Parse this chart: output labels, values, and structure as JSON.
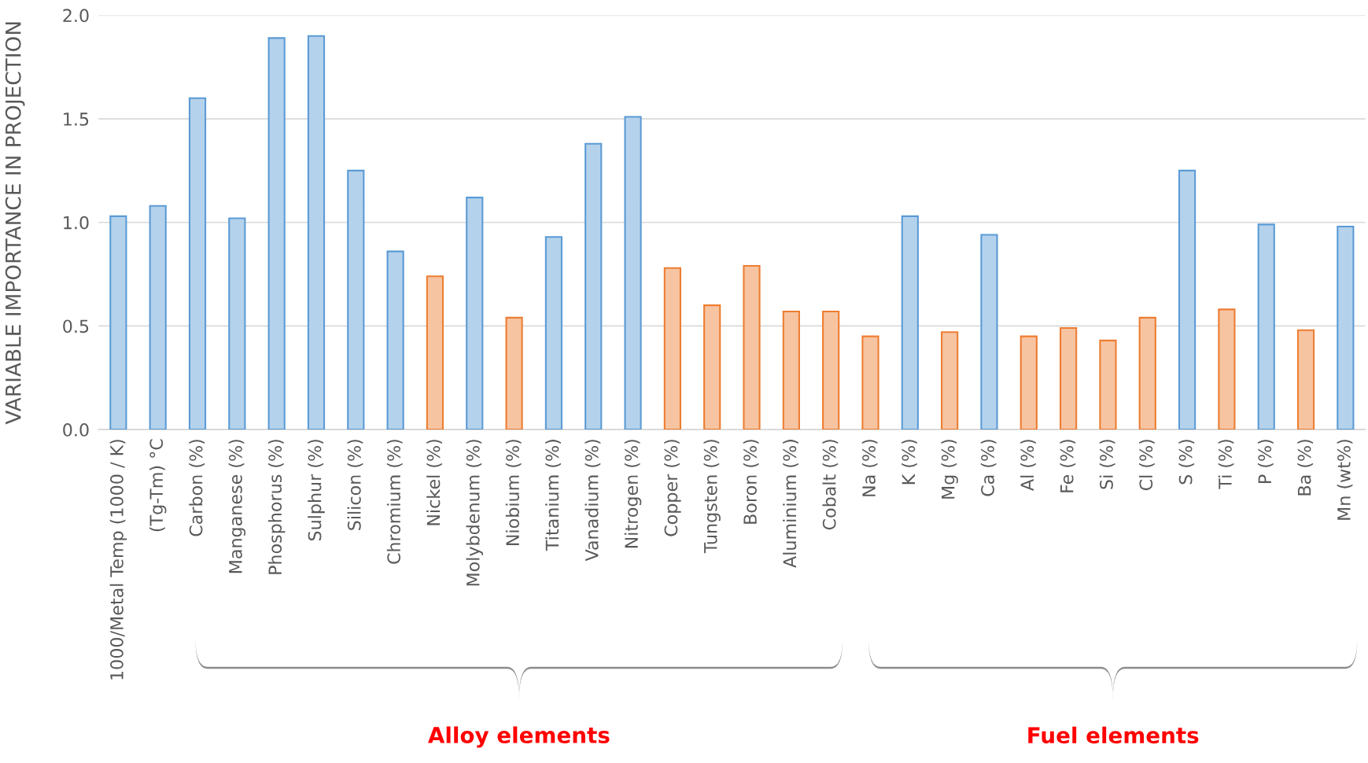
{
  "chart_data": {
    "type": "bar",
    "ylabel": "VARIABLE IMPORTANCE IN PROJECTION",
    "categories": [
      "1000/Metal Temp (1000 / K)",
      "(Tg-Tm) °C",
      "Carbon (%)",
      "Manganese (%)",
      "Phosphorus (%)",
      "Sulphur (%)",
      "Silicon (%)",
      "Chromium (%)",
      "Nickel (%)",
      "Molybdenum (%)",
      "Niobium (%)",
      "Titanium (%)",
      "Vanadium (%)",
      "Nitrogen (%)",
      "Copper (%)",
      "Tungsten (%)",
      "Boron (%)",
      "Aluminium (%)",
      "Cobalt (%)",
      "Na (%)",
      "K (%)",
      "Mg (%)",
      "Ca (%)",
      "Al (%)",
      "Fe (%)",
      "Si (%)",
      "Cl (%)",
      "S (%)",
      "Ti (%)",
      "P (%)",
      "Ba (%)",
      "Mn (wt%)"
    ],
    "values": [
      1.03,
      1.08,
      1.6,
      1.02,
      1.89,
      1.9,
      1.25,
      0.86,
      0.74,
      1.12,
      0.54,
      0.93,
      1.38,
      1.51,
      0.78,
      0.6,
      0.79,
      0.57,
      0.57,
      0.45,
      1.03,
      0.47,
      0.94,
      0.45,
      0.49,
      0.43,
      0.54,
      1.25,
      0.58,
      0.99,
      0.48,
      0.98
    ],
    "colors": [
      "#5b9bd5",
      "#5b9bd5",
      "#5b9bd5",
      "#5b9bd5",
      "#5b9bd5",
      "#5b9bd5",
      "#5b9bd5",
      "#5b9bd5",
      "#ed7d31",
      "#5b9bd5",
      "#ed7d31",
      "#5b9bd5",
      "#5b9bd5",
      "#5b9bd5",
      "#ed7d31",
      "#ed7d31",
      "#ed7d31",
      "#ed7d31",
      "#ed7d31",
      "#ed7d31",
      "#5b9bd5",
      "#ed7d31",
      "#5b9bd5",
      "#ed7d31",
      "#ed7d31",
      "#ed7d31",
      "#ed7d31",
      "#5b9bd5",
      "#ed7d31",
      "#5b9bd5",
      "#ed7d31",
      "#5b9bd5"
    ],
    "ylim": [
      0,
      2.0
    ],
    "yticks": [
      {
        "value": 0,
        "label": "0.0"
      },
      {
        "value": 0.5,
        "label": "0.5"
      },
      {
        "value": 1.0,
        "label": "1.0"
      },
      {
        "value": 1.5,
        "label": "1.5"
      },
      {
        "value": 2.0,
        "label": "2.0"
      }
    ],
    "grid": "y",
    "annotations": [
      "Alloy elements",
      "Fuel elements"
    ]
  }
}
